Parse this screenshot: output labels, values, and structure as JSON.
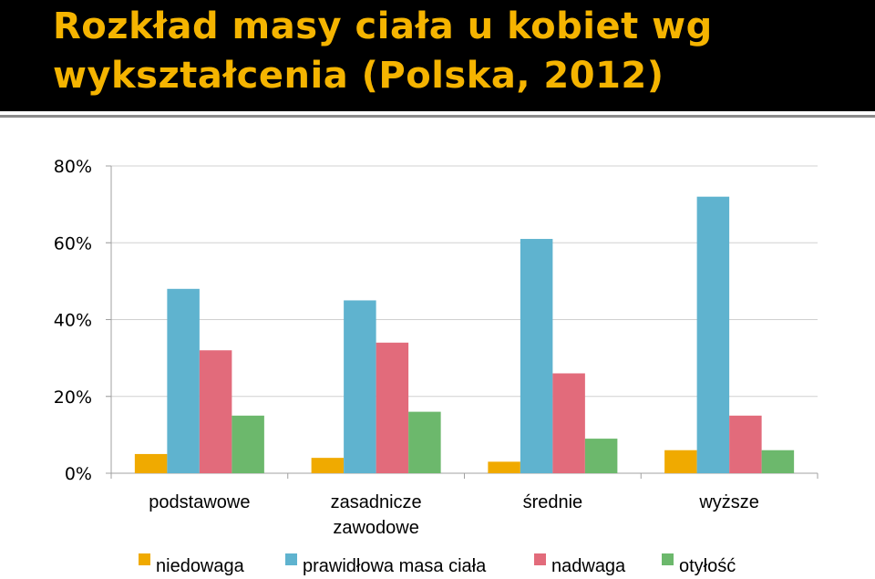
{
  "title": {
    "line1": "Rozkład masy ciała u kobiet wg",
    "line2": "wykształcenia (Polska, 2012)",
    "color": "#f5b400",
    "background": "#000000"
  },
  "chart_data": {
    "type": "bar",
    "title": "Rozkład masy ciała u kobiet wg wykształcenia (Polska, 2012)",
    "categories": [
      [
        "podstawowe"
      ],
      [
        "zasadnicze",
        "zawodowe"
      ],
      [
        "średnie"
      ],
      [
        "wyższe"
      ]
    ],
    "series": [
      {
        "name": "niedowaga",
        "color": "#f0aa00",
        "values": [
          5,
          4,
          3,
          6
        ]
      },
      {
        "name": "prawidłowa masa ciała",
        "color": "#5fb3cf",
        "values": [
          48,
          45,
          61,
          72
        ]
      },
      {
        "name": "nadwaga",
        "color": "#e26b7b",
        "values": [
          32,
          34,
          26,
          15
        ]
      },
      {
        "name": "otyłość",
        "color": "#6cb86c",
        "values": [
          15,
          16,
          9,
          6
        ]
      }
    ],
    "yticks": [
      0,
      20,
      40,
      60,
      80
    ],
    "ytick_labels": [
      "0%",
      "20%",
      "40%",
      "60%",
      "80%"
    ],
    "ylim": [
      0,
      80
    ],
    "xlabel": "",
    "ylabel": "",
    "grid": true,
    "legend_position": "bottom"
  }
}
